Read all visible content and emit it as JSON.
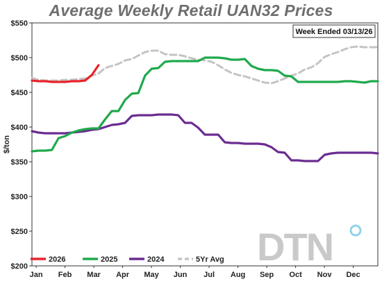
{
  "chart_data": {
    "type": "line",
    "title": "Average Weekly Retail UAN32 Prices",
    "ylabel": "$/ton",
    "xlabel": "",
    "note": "Week Ended 03/13/26",
    "logo": "DTN",
    "ylim": [
      200,
      550
    ],
    "yticks": [
      "$200",
      "$250",
      "$300",
      "$350",
      "$400",
      "$450",
      "$500",
      "$550"
    ],
    "ytick_values": [
      200,
      250,
      300,
      350,
      400,
      450,
      500,
      550
    ],
    "xticks": [
      "Jan",
      "Feb",
      "Mar",
      "Apr",
      "May",
      "Jun",
      "Jul",
      "Aug",
      "Sep",
      "Oct",
      "Nov",
      "Dec"
    ],
    "xlim_weeks": [
      1,
      53
    ],
    "grid": false,
    "legend_position": "bottom-left",
    "series": [
      {
        "name": "2026",
        "color": "#e8232b",
        "dashed": false,
        "x": [
          1,
          2,
          3,
          4,
          5,
          6,
          7,
          8,
          9,
          10,
          11
        ],
        "y": [
          467,
          466,
          466,
          465,
          465,
          465,
          466,
          466,
          467,
          475,
          489
        ]
      },
      {
        "name": "2025",
        "color": "#1fa94c",
        "dashed": false,
        "x": [
          1,
          2,
          3,
          4,
          5,
          6,
          7,
          8,
          9,
          10,
          11,
          12,
          13,
          14,
          15,
          16,
          17,
          18,
          19,
          20,
          21,
          22,
          23,
          24,
          25,
          26,
          27,
          28,
          29,
          30,
          31,
          32,
          33,
          34,
          35,
          36,
          37,
          38,
          39,
          40,
          41,
          42,
          43,
          44,
          45,
          46,
          47,
          48,
          49,
          50,
          51,
          52,
          53
        ],
        "y": [
          365,
          366,
          366,
          367,
          384,
          387,
          392,
          395,
          397,
          398,
          398,
          411,
          423,
          423,
          439,
          448,
          449,
          474,
          484,
          485,
          494,
          495,
          495,
          495,
          495,
          495,
          500,
          500,
          500,
          499,
          497,
          497,
          498,
          488,
          484,
          482,
          482,
          481,
          474,
          473,
          465,
          465,
          465,
          465,
          465,
          465,
          465,
          466,
          466,
          465,
          464,
          466,
          466
        ]
      },
      {
        "name": "2024",
        "color": "#6a2c91",
        "dashed": false,
        "x": [
          1,
          2,
          3,
          4,
          5,
          6,
          7,
          8,
          9,
          10,
          11,
          12,
          13,
          14,
          15,
          16,
          17,
          18,
          19,
          20,
          21,
          22,
          23,
          24,
          25,
          26,
          27,
          28,
          29,
          30,
          31,
          32,
          33,
          34,
          35,
          36,
          37,
          38,
          39,
          40,
          41,
          42,
          43,
          44,
          45,
          46,
          47,
          48,
          49,
          50,
          51,
          52,
          53
        ],
        "y": [
          394,
          392,
          391,
          391,
          391,
          391,
          392,
          393,
          394,
          396,
          397,
          400,
          403,
          404,
          406,
          416,
          417,
          417,
          417,
          418,
          418,
          418,
          417,
          406,
          406,
          399,
          389,
          389,
          389,
          378,
          377,
          377,
          376,
          376,
          376,
          375,
          371,
          364,
          363,
          352,
          352,
          351,
          351,
          351,
          360,
          362,
          363,
          363,
          363,
          363,
          363,
          363,
          362
        ]
      },
      {
        "name": "5Yr Avg",
        "color": "#c4c4c4",
        "dashed": true,
        "x": [
          1,
          2,
          3,
          4,
          5,
          6,
          7,
          8,
          9,
          10,
          11,
          12,
          13,
          14,
          15,
          16,
          17,
          18,
          19,
          20,
          21,
          22,
          23,
          24,
          25,
          26,
          27,
          28,
          29,
          30,
          31,
          32,
          33,
          34,
          35,
          36,
          37,
          38,
          39,
          40,
          41,
          42,
          43,
          44,
          45,
          46,
          47,
          48,
          49,
          50,
          51,
          52,
          53
        ],
        "y": [
          471,
          468,
          467,
          467,
          467,
          468,
          468,
          469,
          470,
          474,
          477,
          485,
          488,
          491,
          496,
          498,
          503,
          508,
          510,
          510,
          505,
          504,
          504,
          502,
          499,
          497,
          496,
          494,
          489,
          483,
          478,
          475,
          473,
          470,
          467,
          464,
          463,
          466,
          470,
          474,
          477,
          483,
          486,
          492,
          501,
          505,
          508,
          512,
          515,
          516,
          515,
          515,
          515
        ]
      }
    ]
  }
}
